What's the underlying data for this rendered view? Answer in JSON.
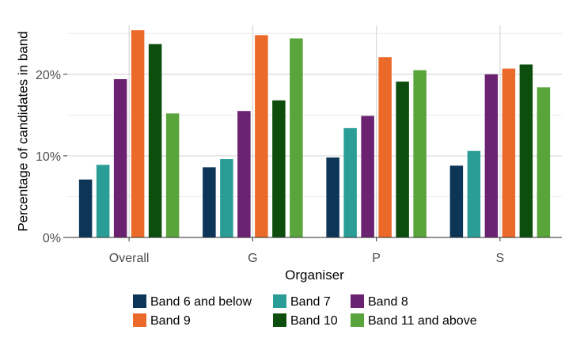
{
  "chart_data": {
    "type": "bar",
    "xlabel": "Organiser",
    "ylabel": "Percentage of candidates in band",
    "ylim": [
      0,
      26
    ],
    "yticks": [
      0,
      10,
      20
    ],
    "ytick_labels": [
      "0%",
      "10%",
      "20%"
    ],
    "categories": [
      "Overall",
      "G",
      "P",
      "S"
    ],
    "grid": true,
    "legend_position": "bottom",
    "series": [
      {
        "name": "Band 6 and below",
        "color": "#0d3558",
        "values": [
          7.1,
          8.6,
          9.8,
          8.8
        ]
      },
      {
        "name": "Band 7",
        "color": "#2a9d96",
        "values": [
          8.9,
          9.6,
          13.4,
          10.6
        ]
      },
      {
        "name": "Band 8",
        "color": "#6b2371",
        "values": [
          19.4,
          15.5,
          14.9,
          20.0
        ]
      },
      {
        "name": "Band 9",
        "color": "#eb6a2a",
        "values": [
          25.4,
          24.8,
          22.1,
          20.7
        ]
      },
      {
        "name": "Band 10",
        "color": "#0d4e0f",
        "values": [
          23.7,
          16.8,
          19.1,
          21.2
        ]
      },
      {
        "name": "Band 11 and above",
        "color": "#5aa43c",
        "values": [
          15.2,
          24.4,
          20.5,
          18.4
        ]
      }
    ]
  }
}
